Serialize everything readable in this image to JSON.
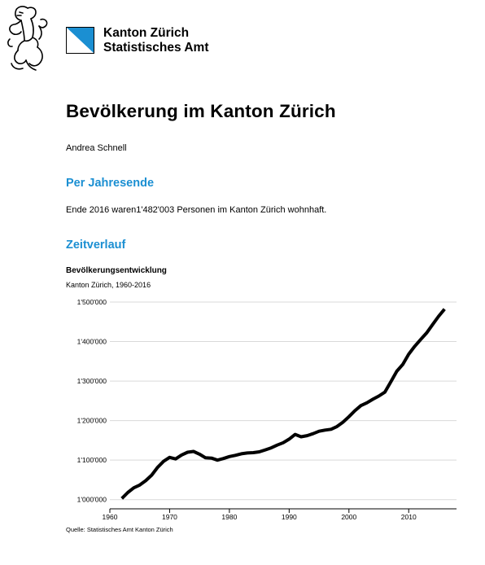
{
  "header": {
    "org_line1": "Kanton Zürich",
    "org_line2": "Statistisches Amt",
    "flag_colors": {
      "blue": "#1b8fd2",
      "white": "#ffffff"
    }
  },
  "page": {
    "title": "Bevölkerung im Kanton Zürich",
    "author": "Andrea Schnell"
  },
  "sections": {
    "s1_title": "Per Jahresende",
    "s1_text": "Ende 2016 waren1'482'003 Personen im Kanton Zürich wohnhaft.",
    "s2_title": "Zeitverlauf"
  },
  "colors": {
    "accent": "#1b8fd2",
    "line": "#000000",
    "grid": "#d9d9d9"
  },
  "chart_data": {
    "type": "line",
    "title": "Bevölkerungsentwicklung",
    "subtitle": "Kanton Zürich, 1960-2016",
    "source": "Quelle: Statistisches Amt Kanton Zürich",
    "xlabel": "",
    "ylabel": "",
    "xlim": [
      1960,
      2018
    ],
    "ylim": [
      985000,
      1500000
    ],
    "x_ticks": [
      1960,
      1970,
      1980,
      1990,
      2000,
      2010
    ],
    "x_tick_labels": [
      "1960",
      "1970",
      "1980",
      "1990",
      "2000",
      "2010"
    ],
    "y_ticks": [
      1000000,
      1100000,
      1200000,
      1300000,
      1400000,
      1500000
    ],
    "y_tick_labels": [
      "1'000'000",
      "1'100'000",
      "1'200'000",
      "1'300'000",
      "1'400'000",
      "1'500'000"
    ],
    "grid": true,
    "series": [
      {
        "x": [
          1962,
          1963,
          1964,
          1965,
          1966,
          1967,
          1968,
          1969,
          1970,
          1971,
          1972,
          1973,
          1974,
          1975,
          1976,
          1977,
          1978,
          1979,
          1980,
          1981,
          1982,
          1983,
          1984,
          1985,
          1986,
          1987,
          1988,
          1989,
          1990,
          1991,
          1992,
          1993,
          1994,
          1995,
          1996,
          1997,
          1998,
          1999,
          2000,
          2001,
          2002,
          2003,
          2004,
          2005,
          2006,
          2007,
          2008,
          2009,
          2010,
          2011,
          2012,
          2013,
          2014,
          2015,
          2016
        ],
        "values": [
          1003000,
          1018000,
          1030000,
          1037000,
          1048000,
          1062000,
          1082000,
          1097000,
          1107000,
          1103000,
          1113000,
          1120000,
          1122000,
          1115000,
          1106000,
          1105000,
          1100000,
          1104000,
          1109000,
          1112000,
          1116000,
          1118000,
          1119000,
          1121000,
          1126000,
          1131000,
          1138000,
          1144000,
          1153000,
          1165000,
          1159000,
          1162000,
          1167000,
          1173000,
          1176000,
          1178000,
          1185000,
          1196000,
          1210000,
          1225000,
          1238000,
          1245000,
          1254000,
          1262000,
          1272000,
          1298000,
          1325000,
          1342000,
          1368000,
          1388000,
          1405000,
          1422000,
          1443000,
          1464000,
          1482003
        ]
      }
    ]
  }
}
